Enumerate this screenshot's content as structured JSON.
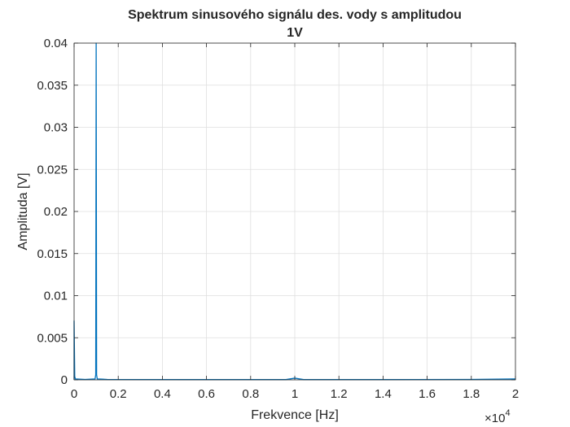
{
  "chart_data": {
    "type": "line",
    "title_line1": "Spektrum sinusového signálu des. vody s amplitudou",
    "title_line2": "1V",
    "xlabel": "Frekvence [Hz]",
    "ylabel": "Amplituda [V]",
    "xlim": [
      0,
      20000
    ],
    "ylim": [
      0,
      0.04
    ],
    "x_ticks": [
      0,
      2000,
      4000,
      6000,
      8000,
      10000,
      12000,
      14000,
      16000,
      18000,
      20000
    ],
    "x_tick_labels": [
      "0",
      "0.2",
      "0.4",
      "0.6",
      "0.8",
      "1",
      "1.2",
      "1.4",
      "1.6",
      "1.8",
      "2"
    ],
    "x_exponent_base": "×10",
    "x_exponent_power": "4",
    "y_ticks": [
      0,
      0.005,
      0.01,
      0.015,
      0.02,
      0.025,
      0.03,
      0.035,
      0.04
    ],
    "y_tick_labels": [
      "0",
      "0.005",
      "0.01",
      "0.015",
      "0.02",
      "0.025",
      "0.03",
      "0.035",
      "0.04"
    ],
    "grid": true,
    "line_color": "#0072BD",
    "series": [
      {
        "x": [
          0,
          0,
          30,
          60,
          500,
          950,
          980,
          1000,
          1020,
          1050,
          1500,
          5000,
          9600,
          10000,
          10400,
          14000,
          18000,
          20000
        ],
        "values": [
          0,
          0.007,
          0.0004,
          0.0001,
          5e-05,
          0.0001,
          0.0006,
          0.04,
          0.0006,
          0.0001,
          5e-05,
          3e-05,
          3e-05,
          0.0002,
          3e-05,
          3e-05,
          5e-05,
          0.0001
        ]
      }
    ]
  }
}
